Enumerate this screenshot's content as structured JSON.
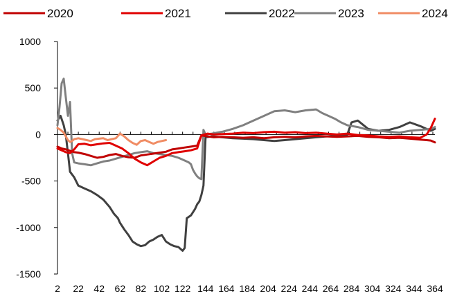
{
  "chart_data": {
    "type": "line",
    "title": "",
    "xlabel": "",
    "ylabel": "",
    "xlim": [
      2,
      364
    ],
    "ylim": [
      -1500,
      1000
    ],
    "grid": false,
    "legend_position": "top",
    "y_ticks": [
      1000,
      500,
      0,
      -500,
      -1000,
      -1500
    ],
    "x_ticks": [
      2,
      22,
      42,
      62,
      82,
      102,
      122,
      144,
      164,
      184,
      204,
      224,
      244,
      264,
      284,
      304,
      324,
      344,
      364
    ],
    "series": [
      {
        "name": "2020",
        "color": "#C00000",
        "x": [
          2,
          6,
          10,
          14,
          18,
          22,
          28,
          34,
          40,
          46,
          52,
          58,
          64,
          70,
          76,
          82,
          88,
          94,
          100,
          106,
          112,
          118,
          124,
          130,
          136,
          140,
          146,
          152,
          160,
          170,
          180,
          190,
          200,
          210,
          220,
          230,
          240,
          250,
          260,
          270,
          280,
          290,
          300,
          310,
          320,
          330,
          340,
          350,
          356,
          360,
          364
        ],
        "values": [
          -130,
          -150,
          -160,
          -175,
          -190,
          -195,
          -210,
          -230,
          -250,
          -240,
          -220,
          -210,
          -230,
          -245,
          -250,
          -225,
          -215,
          -205,
          -195,
          -185,
          -160,
          -150,
          -140,
          -130,
          -120,
          -10,
          -20,
          -30,
          -25,
          -30,
          -35,
          -30,
          -40,
          -30,
          -25,
          -30,
          -20,
          -15,
          -20,
          -25,
          -20,
          -15,
          -25,
          -30,
          -40,
          -35,
          -45,
          -55,
          -60,
          -65,
          -85
        ]
      },
      {
        "name": "2021",
        "color": "#E00000",
        "x": [
          2,
          6,
          10,
          14,
          18,
          22,
          28,
          34,
          40,
          46,
          52,
          58,
          64,
          70,
          76,
          82,
          88,
          94,
          100,
          106,
          112,
          118,
          124,
          130,
          136,
          140,
          146,
          152,
          160,
          170,
          180,
          190,
          200,
          210,
          220,
          230,
          240,
          250,
          260,
          270,
          280,
          290,
          300,
          310,
          320,
          330,
          340,
          350,
          356,
          360,
          364
        ],
        "values": [
          -150,
          -170,
          -190,
          -200,
          -160,
          -105,
          -100,
          -115,
          -105,
          -95,
          -90,
          -120,
          -150,
          -200,
          -260,
          -300,
          -330,
          -290,
          -250,
          -230,
          -200,
          -190,
          -180,
          -170,
          -150,
          -10,
          10,
          0,
          5,
          10,
          20,
          15,
          25,
          30,
          20,
          25,
          15,
          20,
          10,
          0,
          10,
          -5,
          -10,
          -20,
          -25,
          -20,
          -30,
          -35,
          0,
          70,
          170
        ]
      },
      {
        "name": "2022",
        "color": "#404040",
        "x": [
          2,
          5,
          8,
          10,
          11,
          12,
          13,
          14,
          16,
          18,
          22,
          28,
          34,
          40,
          46,
          52,
          56,
          60,
          62,
          66,
          70,
          74,
          78,
          82,
          86,
          90,
          94,
          98,
          102,
          106,
          110,
          114,
          118,
          120,
          122,
          124,
          126,
          130,
          134,
          136,
          138,
          140,
          142,
          144,
          150,
          160,
          170,
          180,
          190,
          200,
          210,
          220,
          230,
          240,
          250,
          260,
          270,
          280,
          284,
          290,
          300,
          310,
          320,
          330,
          340,
          350,
          360,
          364
        ],
        "values": [
          150,
          200,
          100,
          0,
          -100,
          -200,
          -300,
          -400,
          -430,
          -460,
          -550,
          -580,
          -610,
          -650,
          -700,
          -780,
          -850,
          -900,
          -950,
          -1020,
          -1080,
          -1150,
          -1180,
          -1200,
          -1190,
          -1150,
          -1130,
          -1100,
          -1080,
          -1150,
          -1180,
          -1200,
          -1210,
          -1230,
          -1250,
          -1220,
          -900,
          -870,
          -800,
          -750,
          -720,
          -650,
          -550,
          -30,
          -20,
          -30,
          -40,
          -45,
          -50,
          -60,
          -70,
          -60,
          -50,
          -40,
          -30,
          -20,
          -10,
          0,
          130,
          150,
          60,
          40,
          50,
          80,
          130,
          90,
          40,
          60
        ]
      },
      {
        "name": "2023",
        "color": "#808080",
        "x": [
          2,
          4,
          6,
          8,
          10,
          12,
          14,
          16,
          18,
          22,
          28,
          34,
          40,
          46,
          52,
          58,
          64,
          70,
          76,
          82,
          88,
          94,
          100,
          106,
          112,
          118,
          124,
          128,
          130,
          132,
          134,
          136,
          138,
          140,
          142,
          144,
          150,
          160,
          170,
          180,
          190,
          200,
          210,
          220,
          230,
          240,
          250,
          256,
          262,
          268,
          274,
          280,
          290,
          300,
          310,
          320,
          330,
          340,
          350,
          360,
          364
        ],
        "values": [
          100,
          300,
          550,
          600,
          400,
          200,
          350,
          -200,
          -300,
          -310,
          -320,
          -330,
          -310,
          -290,
          -280,
          -260,
          -240,
          -220,
          -200,
          -190,
          -180,
          -200,
          -210,
          -220,
          -230,
          -250,
          -280,
          -300,
          -320,
          -380,
          -420,
          -450,
          -470,
          -480,
          50,
          0,
          10,
          30,
          60,
          100,
          150,
          200,
          250,
          260,
          240,
          260,
          270,
          230,
          200,
          170,
          130,
          100,
          80,
          50,
          40,
          30,
          20,
          40,
          50,
          60,
          80
        ]
      },
      {
        "name": "2024",
        "color": "#F08C64",
        "x": [
          2,
          5,
          8,
          10,
          12,
          14,
          16,
          18,
          22,
          26,
          30,
          34,
          38,
          42,
          46,
          50,
          54,
          58,
          62,
          66,
          70,
          74,
          78,
          82,
          86,
          90,
          94,
          98,
          102,
          106
        ],
        "values": [
          70,
          50,
          20,
          -20,
          -60,
          -80,
          -70,
          -50,
          -40,
          -50,
          -60,
          -70,
          -50,
          -45,
          -40,
          -60,
          -50,
          -40,
          10,
          -20,
          -60,
          -90,
          -110,
          -70,
          -60,
          -80,
          -100,
          -80,
          -70,
          -60
        ]
      }
    ]
  }
}
